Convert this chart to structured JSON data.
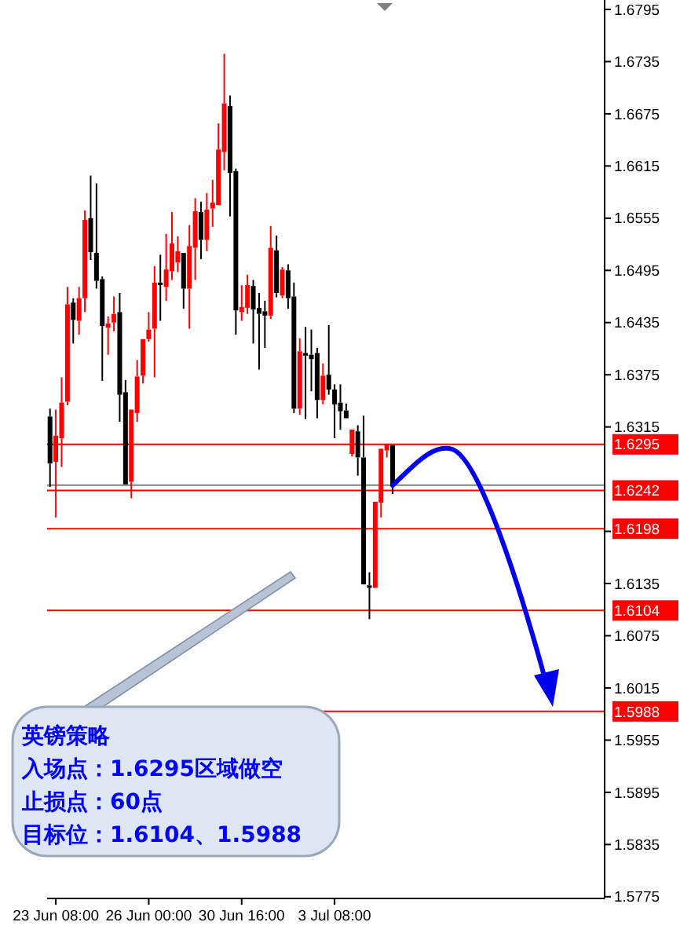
{
  "chart_data": {
    "type": "candlestick",
    "categories": [
      null,
      "23 Jun 08:00",
      null,
      null,
      null,
      null,
      null,
      null,
      null,
      null,
      null,
      null,
      null,
      null,
      null,
      null,
      null,
      "26 Jun 00:00",
      null,
      null,
      null,
      null,
      null,
      null,
      null,
      null,
      null,
      null,
      null,
      null,
      null,
      null,
      null,
      "30 Jun 16:00",
      null,
      null,
      null,
      null,
      null,
      null,
      null,
      null,
      null,
      null,
      null,
      null,
      null,
      null,
      null,
      "3 Jul 08:00",
      null,
      null,
      null,
      null,
      null,
      null,
      null,
      null,
      null,
      null,
      null,
      null,
      null,
      null,
      null,
      null,
      null,
      null,
      null,
      null,
      null,
      null,
      null,
      null,
      null,
      null,
      null,
      null,
      null,
      null,
      null,
      null,
      null,
      null,
      null,
      null,
      null,
      null,
      null,
      null,
      null,
      null,
      null,
      null,
      null,
      null
    ],
    "ohlc": [
      [
        1.6327,
        1.6336,
        1.6246,
        1.6273
      ],
      [
        1.6275,
        1.6335,
        1.6211,
        1.6305
      ],
      [
        1.6302,
        1.6372,
        1.6269,
        1.6343
      ],
      [
        1.6344,
        1.6476,
        1.634,
        1.6456
      ],
      [
        1.6458,
        1.6463,
        1.6411,
        1.6438
      ],
      [
        1.6437,
        1.6476,
        1.6421,
        1.6463
      ],
      [
        1.6463,
        1.6564,
        1.6447,
        1.6553
      ],
      [
        1.6555,
        1.6604,
        1.6507,
        1.6516
      ],
      [
        1.6515,
        1.6595,
        1.6474,
        1.6483
      ],
      [
        1.6485,
        1.6488,
        1.6368,
        1.6431
      ],
      [
        1.6429,
        1.6442,
        1.6398,
        1.6434
      ],
      [
        1.6435,
        1.6465,
        1.6425,
        1.6445
      ],
      [
        1.6447,
        1.6469,
        1.6321,
        1.6352
      ],
      [
        1.6355,
        1.6369,
        1.6248,
        1.6249
      ],
      [
        1.6252,
        1.6336,
        1.6233,
        1.6335
      ],
      [
        1.6331,
        1.6392,
        1.6321,
        1.6373
      ],
      [
        1.6374,
        1.6417,
        1.6365,
        1.6416
      ],
      [
        1.6416,
        1.6447,
        1.6413,
        1.6427
      ],
      [
        1.6428,
        1.65,
        1.6372,
        1.6481
      ],
      [
        1.6481,
        1.6513,
        1.6437,
        1.6478
      ],
      [
        1.6476,
        1.6537,
        1.646,
        1.6496
      ],
      [
        1.6494,
        1.6562,
        1.6484,
        1.6526
      ],
      [
        1.6504,
        1.6534,
        1.6493,
        1.6517
      ],
      [
        1.6515,
        1.6517,
        1.6451,
        1.6474
      ],
      [
        1.6474,
        1.6547,
        1.6428,
        1.6523
      ],
      [
        1.6521,
        1.6578,
        1.6484,
        1.6563
      ],
      [
        1.6562,
        1.6574,
        1.6508,
        1.653
      ],
      [
        1.653,
        1.6584,
        1.6517,
        1.6565
      ],
      [
        1.6566,
        1.6599,
        1.6545,
        1.6573
      ],
      [
        1.657,
        1.6664,
        1.6569,
        1.6634
      ],
      [
        1.6631,
        1.6744,
        1.661,
        1.6687
      ],
      [
        1.6684,
        1.6696,
        1.6557,
        1.6607
      ],
      [
        1.6609,
        1.6612,
        1.6421,
        1.6449
      ],
      [
        1.6447,
        1.6478,
        1.6437,
        1.6453
      ],
      [
        1.6452,
        1.649,
        1.6445,
        1.6478
      ],
      [
        1.6477,
        1.6484,
        1.6411,
        1.645
      ],
      [
        1.6452,
        1.6469,
        1.6381,
        1.6445
      ],
      [
        1.6448,
        1.646,
        1.6406,
        1.6443
      ],
      [
        1.6443,
        1.6546,
        1.6439,
        1.6521
      ],
      [
        1.6518,
        1.6535,
        1.6464,
        1.6469
      ],
      [
        1.6466,
        1.6499,
        1.6463,
        1.6496
      ],
      [
        1.6495,
        1.6502,
        1.6451,
        1.6463
      ],
      [
        1.6465,
        1.6481,
        1.6331,
        1.6336
      ],
      [
        1.6336,
        1.6417,
        1.6329,
        1.6402
      ],
      [
        1.64,
        1.643,
        1.6324,
        1.6397
      ],
      [
        1.6398,
        1.6427,
        1.6356,
        1.6393
      ],
      [
        1.64,
        1.6406,
        1.6325,
        1.6346
      ],
      [
        1.6346,
        1.6388,
        1.6341,
        1.6374
      ],
      [
        1.6375,
        1.6432,
        1.6352,
        1.6358
      ],
      [
        1.6358,
        1.6364,
        1.6302,
        1.6341
      ],
      [
        1.6343,
        1.6364,
        1.6312,
        1.6333
      ],
      [
        1.6334,
        1.6342,
        1.6323,
        1.6325
      ],
      [
        1.6284,
        1.6314,
        1.6281,
        1.6312
      ],
      [
        1.631,
        1.6317,
        1.6259,
        1.628
      ],
      [
        1.628,
        1.6328,
        1.6132,
        1.6134
      ],
      [
        1.6133,
        1.6148,
        1.6094,
        1.613
      ],
      [
        1.613,
        1.623,
        1.6128,
        1.6229
      ],
      [
        1.6228,
        1.6292,
        1.6211,
        1.629
      ],
      [
        1.6288,
        1.6295,
        1.628,
        1.6295
      ],
      [
        1.6294,
        1.6296,
        1.6238,
        1.6248
      ],
      null,
      null,
      null,
      null,
      null,
      null,
      null,
      null,
      null,
      null,
      null,
      null,
      null,
      null,
      null,
      null,
      null,
      null,
      null,
      null,
      null,
      null,
      null,
      null,
      null,
      null,
      null,
      null,
      null,
      null,
      null,
      null,
      null,
      null,
      null,
      null
    ],
    "colors": [
      "#000000",
      "#ff0000",
      "#ff0000",
      "#ff0000",
      "#000000",
      "#ff0000",
      "#ff0000",
      "#000000",
      "#000000",
      "#000000",
      "#ff0000",
      "#ff0000",
      "#000000",
      "#000000",
      "#ff0000",
      "#ff0000",
      "#ff0000",
      "#ff0000",
      "#ff0000",
      "#000000",
      "#ff0000",
      "#ff0000",
      "#ff0000",
      "#000000",
      "#ff0000",
      "#ff0000",
      "#000000",
      "#ff0000",
      "#ff0000",
      "#ff0000",
      "#ff0000",
      "#000000",
      "#000000",
      "#ff0000",
      "#ff0000",
      "#000000",
      "#000000",
      "#000000",
      "#ff0000",
      "#000000",
      "#ff0000",
      "#000000",
      "#000000",
      "#ff0000",
      "#000000",
      "#000000",
      "#000000",
      "#ff0000",
      "#000000",
      "#000000",
      "#000000",
      "#000000",
      "#ff0000",
      "#000000",
      "#000000",
      "#000000",
      "#ff0000",
      "#ff0000",
      "#ff0000",
      "#000000",
      null,
      null,
      null,
      null,
      null,
      null,
      null,
      null,
      null,
      null,
      null,
      null,
      null,
      null,
      null,
      null,
      null,
      null,
      null,
      null,
      null,
      null,
      null,
      null,
      null,
      null,
      null,
      null,
      null,
      null,
      null,
      null,
      null,
      null,
      null,
      null
    ],
    "ylim": [
      1.5773,
      1.6804
    ],
    "yticks": [
      1.6795,
      1.6735,
      1.6675,
      1.6615,
      1.6555,
      1.6495,
      1.6435,
      1.6375,
      1.6315,
      {
        "value": 1.6195,
        "label": null
      },
      1.6135,
      1.6075,
      1.6015,
      1.5955,
      1.5895,
      1.5835,
      1.5775
    ],
    "ref_lines": [
      {
        "axis": "y",
        "value": 1.6295,
        "label": "1.6295",
        "color": "#ff0000"
      },
      {
        "axis": "y",
        "value": 1.6248,
        "color": "#808080"
      },
      {
        "axis": "y",
        "value": 1.6242,
        "label": "1.6242",
        "color": "#ff0000"
      },
      {
        "axis": "y",
        "value": 1.6198,
        "label": "1.6198",
        "color": "#ff0000"
      },
      {
        "axis": "y",
        "value": 1.6104,
        "label": "1.6104",
        "color": "#ff0000"
      },
      {
        "axis": "y",
        "value": 1.5988,
        "label": "1.5988",
        "color": "#ff0000"
      }
    ],
    "annotations": [
      "英镑策略",
      "入场点：1.6295区域做空",
      "止损点：60点",
      "目标位：1.6104、1.5988"
    ],
    "grid": false
  }
}
